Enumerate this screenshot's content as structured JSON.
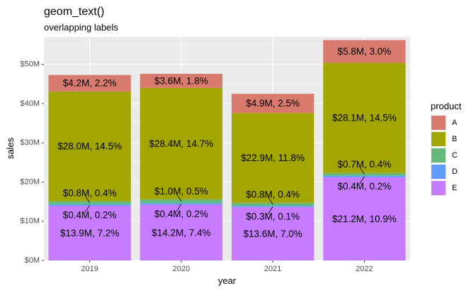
{
  "chart_data": {
    "type": "bar",
    "stacked": true,
    "title": "geom_text()",
    "subtitle": "overlapping labels",
    "xlabel": "year",
    "ylabel": "sales",
    "ylim": [
      0,
      57
    ],
    "y_ticks": [
      0,
      10,
      20,
      30,
      40,
      50
    ],
    "y_tick_labels": [
      "$0M",
      "$10M",
      "$20M",
      "$30M",
      "$40M",
      "$50M"
    ],
    "categories": [
      "2019",
      "2020",
      "2021",
      "2022"
    ],
    "legend": {
      "title": "product",
      "position": "right"
    },
    "series": [
      {
        "name": "E",
        "color": "#C77CFF",
        "values": [
          13.9,
          14.2,
          13.6,
          21.2
        ],
        "labels": [
          "$13.9M, 7.2%",
          "$14.2M, 7.4%",
          "$13.6M, 7.0%",
          "$21.2M, 10.9%"
        ]
      },
      {
        "name": "D",
        "color": "#619CFF",
        "values": [
          0.4,
          0.4,
          0.3,
          0.4
        ],
        "labels": [
          "$0.4M, 0.2%",
          "$0.4M, 0.2%",
          "$0.3M, 0.1%",
          "$0.4M, 0.2%"
        ]
      },
      {
        "name": "C",
        "color": "#66B97A",
        "values": [
          0.8,
          1.0,
          0.8,
          0.7
        ],
        "labels": [
          "$0.8M, 0.4%",
          "$1.0M, 0.5%",
          "$0.8M, 0.4%",
          "$0.7M, 0.4%"
        ]
      },
      {
        "name": "B",
        "color": "#A3A500",
        "values": [
          28.0,
          28.4,
          22.9,
          28.1
        ],
        "labels": [
          "$28.0M, 14.5%",
          "$28.4M, 14.7%",
          "$22.9M, 11.8%",
          "$28.1M, 14.5%"
        ]
      },
      {
        "name": "A",
        "color": "#D87B6E",
        "values": [
          4.2,
          3.6,
          4.9,
          5.8
        ],
        "labels": [
          "$4.2M, 2.2%",
          "$3.6M, 1.8%",
          "$4.9M, 2.5%",
          "$5.8M, 3.0%"
        ]
      }
    ],
    "legend_order": [
      "A",
      "B",
      "C",
      "D",
      "E"
    ]
  }
}
